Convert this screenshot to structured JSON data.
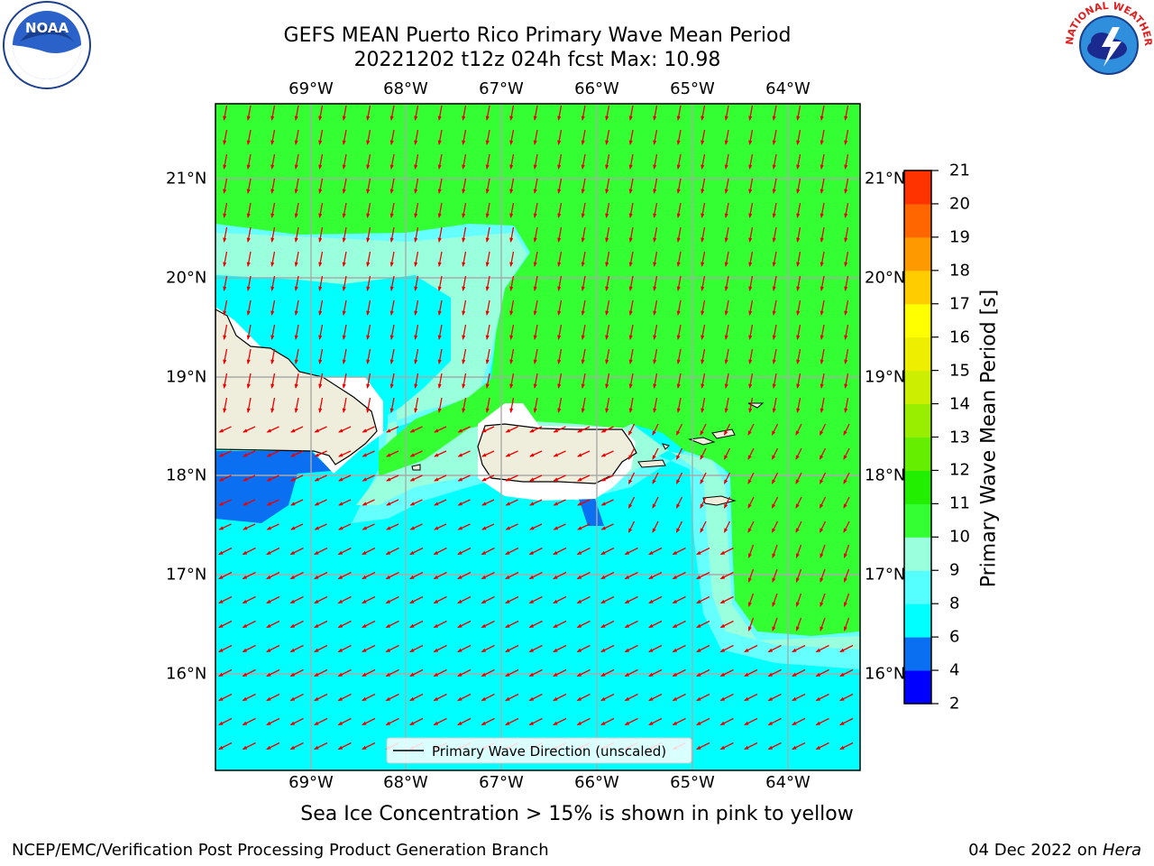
{
  "title_line1": "GEFS MEAN Puerto Rico Primary Wave Mean Period",
  "title_line2": "20221202 t12z 024h fcst   Max: 10.98",
  "lon_labels": [
    "69°W",
    "68°W",
    "67°W",
    "66°W",
    "65°W",
    "64°W"
  ],
  "lat_labels": [
    "21°N",
    "20°N",
    "19°N",
    "18°N",
    "17°N",
    "16°N"
  ],
  "colorbar": {
    "title": "Primary Wave Mean Period [s]",
    "ticks": [
      "2",
      "4",
      "6",
      "8",
      "9",
      "10",
      "11",
      "12",
      "13",
      "14",
      "15",
      "16",
      "17",
      "18",
      "19",
      "20",
      "21"
    ],
    "colors": [
      "#0000ff",
      "#0a6ff0",
      "#00ffff",
      "#55ffff",
      "#99ffdd",
      "#33ff33",
      "#22ee00",
      "#66ee00",
      "#99ee00",
      "#ccee00",
      "#eeee00",
      "#ffff00",
      "#ffcc00",
      "#ff9900",
      "#ff6600",
      "#ff3300",
      "#ff0000"
    ]
  },
  "legend": {
    "label": "Primary Wave Direction (unscaled)"
  },
  "note": "Sea Ice Concentration > 15% is shown in pink to yellow",
  "footer": {
    "left": "NCEP/EMC/Verification Post Processing Product Generation Branch",
    "date": "04 Dec 2022 on ",
    "machine": "Hera"
  },
  "logos": {
    "left": "NOAA",
    "right": "NATIONAL WEATHER SERVICE"
  }
}
